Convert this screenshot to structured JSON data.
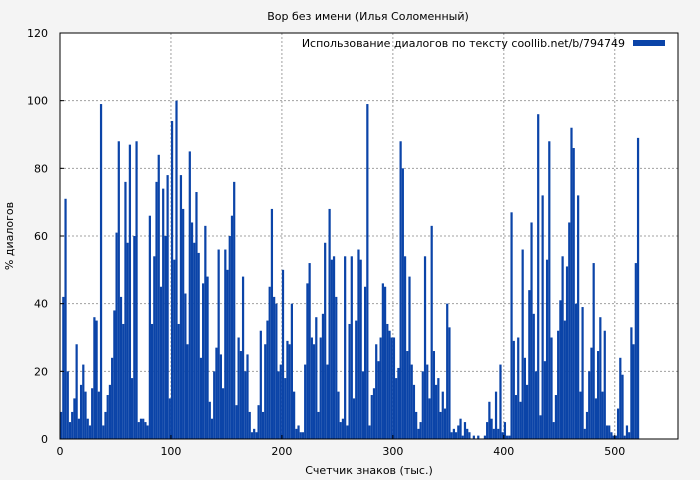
{
  "chart_data": {
    "type": "bar",
    "title": "Вор без имени (Илья Соломенный)",
    "xlabel": "Счетчик знаков (тыс.)",
    "ylabel": "% диалогов",
    "xlim": [
      0,
      557
    ],
    "ylim": [
      0,
      120
    ],
    "xticks": [
      0,
      100,
      200,
      300,
      400,
      500
    ],
    "yticks": [
      0,
      20,
      40,
      60,
      80,
      100,
      120
    ],
    "grid": true,
    "legend": {
      "position": "top-right",
      "label": "Использование диалогов по тексту coollib.net/b/794749"
    },
    "colors": {
      "bar": "#0b44a8",
      "grid": "#a0a0a0",
      "background": "#f4f4f4",
      "plot": "#ffffff"
    },
    "series": [
      {
        "name": "Использование диалогов по тексту coollib.net/b/794749",
        "x_start": 0,
        "x_step": 2,
        "values": [
          8,
          42,
          71,
          20,
          5,
          8,
          12,
          28,
          6,
          16,
          22,
          14,
          6,
          4,
          15,
          36,
          35,
          14,
          99,
          4,
          8,
          13,
          16,
          24,
          38,
          61,
          88,
          42,
          34,
          76,
          58,
          87,
          18,
          60,
          88,
          5,
          6,
          6,
          5,
          4,
          66,
          34,
          54,
          76,
          84,
          45,
          74,
          60,
          78,
          12,
          94,
          53,
          100,
          34,
          78,
          68,
          43,
          28,
          85,
          64,
          58,
          73,
          55,
          24,
          46,
          63,
          48,
          11,
          6,
          20,
          27,
          56,
          25,
          15,
          56,
          50,
          60,
          66,
          76,
          10,
          30,
          26,
          48,
          20,
          25,
          8,
          2,
          3,
          2,
          10,
          32,
          8,
          28,
          35,
          45,
          68,
          42,
          40,
          20,
          22,
          50,
          18,
          29,
          28,
          40,
          14,
          3,
          4,
          2,
          2,
          22,
          46,
          52,
          30,
          28,
          36,
          8,
          30,
          37,
          58,
          22,
          68,
          53,
          54,
          42,
          14,
          5,
          6,
          54,
          4,
          34,
          54,
          12,
          35,
          56,
          53,
          20,
          45,
          99,
          4,
          13,
          15,
          28,
          23,
          30,
          46,
          45,
          34,
          32,
          30,
          30,
          18,
          21,
          88,
          80,
          54,
          26,
          48,
          22,
          16,
          8,
          3,
          5,
          20,
          54,
          22,
          12,
          63,
          26,
          16,
          18,
          8,
          14,
          9,
          40,
          33,
          2,
          3,
          2,
          4,
          6,
          1,
          5,
          3,
          2,
          0,
          1,
          0,
          1,
          0,
          0,
          1,
          5,
          11,
          6,
          3,
          14,
          3,
          22,
          2,
          5,
          1,
          1,
          67,
          29,
          13,
          30,
          11,
          56,
          24,
          16,
          44,
          64,
          37,
          20,
          96,
          7,
          72,
          23,
          53,
          88,
          30,
          5,
          13,
          32,
          41,
          54,
          35,
          51,
          64,
          92,
          86,
          40,
          72,
          14,
          39,
          3,
          8,
          20,
          27,
          52,
          12,
          26,
          36,
          14,
          32,
          4,
          4,
          2,
          1,
          1,
          9,
          24,
          19,
          1,
          4,
          2,
          33,
          28,
          52,
          89
        ]
      }
    ]
  }
}
